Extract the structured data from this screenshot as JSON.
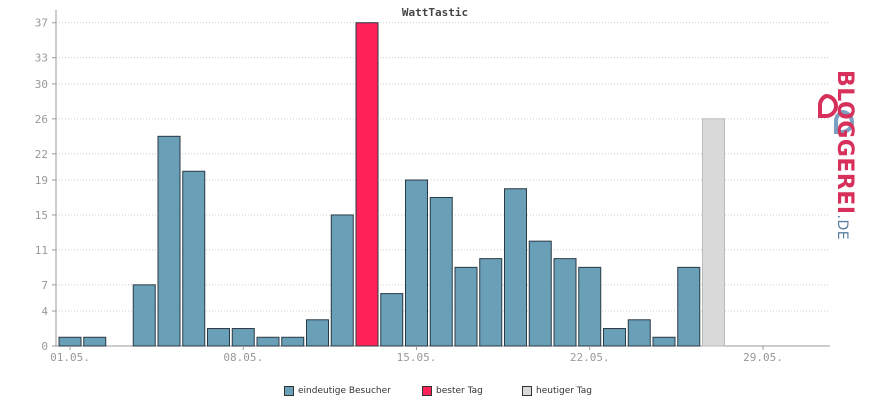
{
  "chart_data": {
    "type": "bar",
    "title": "WattTastic",
    "ylim": [
      0,
      38
    ],
    "y_ticks": [
      "0",
      "4",
      "7",
      "11",
      "15",
      "19",
      "22",
      "26",
      "30",
      "33",
      "37"
    ],
    "x_tick_labels": [
      {
        "day": 1,
        "label": "01.05."
      },
      {
        "day": 8,
        "label": "08.05."
      },
      {
        "day": 15,
        "label": "15.05."
      },
      {
        "day": 22,
        "label": "22.05."
      },
      {
        "day": 29,
        "label": "29.05."
      }
    ],
    "days": [
      1,
      2,
      3,
      4,
      5,
      6,
      7,
      8,
      9,
      10,
      11,
      12,
      13,
      14,
      15,
      16,
      17,
      18,
      19,
      20,
      21,
      22,
      23,
      24,
      25,
      26,
      27,
      28,
      29,
      30,
      31
    ],
    "values": [
      1,
      1,
      0,
      7,
      24,
      20,
      2,
      2,
      1,
      1,
      3,
      15,
      37,
      6,
      19,
      17,
      9,
      10,
      18,
      12,
      10,
      9,
      2,
      3,
      1,
      9,
      26,
      0,
      0,
      0,
      0
    ],
    "bar_kind": [
      "n",
      "n",
      "n",
      "n",
      "n",
      "n",
      "n",
      "n",
      "n",
      "n",
      "n",
      "n",
      "best",
      "n",
      "n",
      "n",
      "n",
      "n",
      "n",
      "n",
      "n",
      "n",
      "n",
      "n",
      "n",
      "n",
      "today",
      "n",
      "n",
      "n",
      "n"
    ],
    "colors": {
      "eindeutige": "#6a9fb8",
      "bester": "#ff2158",
      "heutiger": "#d9d9d9",
      "bar_border": "#2a3a44",
      "grid": "#cccccc",
      "axis": "#999999",
      "tick_text": "#999999"
    },
    "legend": [
      {
        "key": "eindeutige",
        "label": "eindeutige Besucher"
      },
      {
        "key": "bester",
        "label": "bester Tag"
      },
      {
        "key": "heutiger",
        "label": "heutiger Tag"
      }
    ],
    "grid": true
  },
  "logo": {
    "text": "BLOGGEREI",
    "suffix": ".DE"
  }
}
